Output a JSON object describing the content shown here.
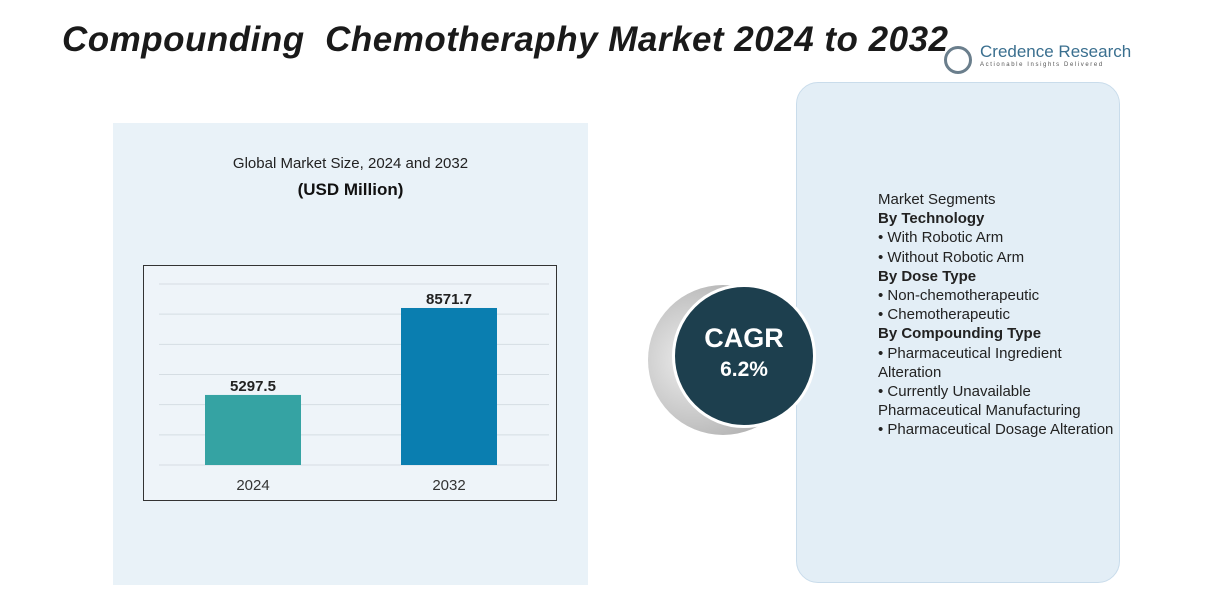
{
  "title": "Compounding  Chemotheraphy Market 2024 to 2032",
  "logo": {
    "name": "Credence Research",
    "tagline": "Actionable Insights Delivered"
  },
  "chart_data": {
    "type": "bar",
    "title": "Global Market Size, 2024 and 2032",
    "subtitle": "(USD Million)",
    "categories": [
      "2024",
      "2032"
    ],
    "values": [
      5297.5,
      8571.7
    ],
    "value_labels": [
      "5297.5",
      "8571.7"
    ],
    "colors": [
      "#35a3a3",
      "#0a7eb0"
    ],
    "ylim": [
      2660,
      9475
    ],
    "grid": true
  },
  "cagr": {
    "label": "CAGR",
    "value": "6.2%"
  },
  "segments": {
    "heading": "Market Segments",
    "groups": [
      {
        "title": "By Technology",
        "items": [
          "With Robotic Arm",
          "Without Robotic Arm"
        ]
      },
      {
        "title": "By Dose Type",
        "items": [
          "Non-chemotherapeutic",
          "Chemotherapeutic"
        ]
      },
      {
        "title": "By Compounding Type",
        "items": [
          "Pharmaceutical Ingredient Alteration",
          "Currently Unavailable Pharmaceutical Manufacturing",
          "Pharmaceutical Dosage Alteration"
        ]
      }
    ]
  }
}
